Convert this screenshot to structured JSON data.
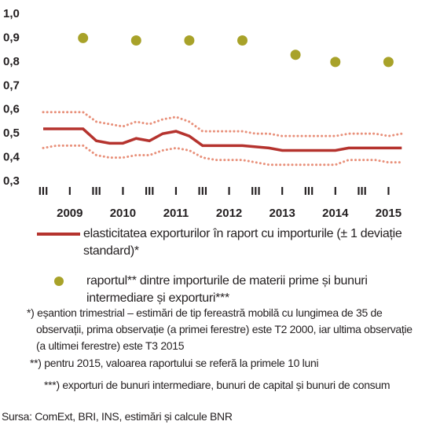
{
  "chart_data": {
    "type": "line",
    "categories": [
      "III",
      null,
      "I",
      null,
      "III",
      null,
      "I",
      null,
      "III",
      null,
      "I",
      null,
      "III",
      null,
      "I",
      null,
      "III",
      null,
      "I",
      null,
      "III",
      null,
      "I",
      null,
      "III",
      null,
      "I",
      null
    ],
    "years": [
      "2009",
      "2010",
      "2011",
      "2012",
      "2013",
      "2014",
      "2015"
    ],
    "series": [
      {
        "name": "elasticitatea exporturilor în raport cu importurile (± 1 deviație standard)*",
        "color": "#b5332e",
        "style": "solid",
        "values": [
          0.52,
          0.52,
          0.52,
          0.52,
          0.47,
          0.46,
          0.46,
          0.48,
          0.47,
          0.5,
          0.51,
          0.49,
          0.45,
          0.45,
          0.45,
          0.45,
          0.445,
          0.44,
          0.43,
          0.43,
          0.43,
          0.43,
          0.43,
          0.44,
          0.44,
          0.44,
          0.44,
          0.44
        ]
      },
      {
        "color": "#e8907a",
        "style": "dotted",
        "values": [
          0.59,
          0.59,
          0.59,
          0.59,
          0.55,
          0.54,
          0.53,
          0.55,
          0.54,
          0.56,
          0.57,
          0.55,
          0.51,
          0.51,
          0.51,
          0.51,
          0.5,
          0.5,
          0.49,
          0.49,
          0.49,
          0.49,
          0.49,
          0.5,
          0.5,
          0.5,
          0.49,
          0.5
        ]
      },
      {
        "color": "#e8907a",
        "style": "dotted",
        "values": [
          0.44,
          0.45,
          0.45,
          0.45,
          0.41,
          0.4,
          0.4,
          0.41,
          0.41,
          0.43,
          0.44,
          0.43,
          0.4,
          0.39,
          0.39,
          0.39,
          0.38,
          0.37,
          0.37,
          0.37,
          0.37,
          0.37,
          0.37,
          0.39,
          0.39,
          0.39,
          0.38,
          0.38
        ]
      },
      {
        "name": "raportul** dintre importurile de materii prime și bunuri intermediare și exporturi***",
        "color": "#a8a229",
        "style": "dots",
        "values": [
          null,
          null,
          null,
          0.9,
          null,
          null,
          null,
          0.89,
          null,
          null,
          null,
          0.89,
          null,
          null,
          null,
          0.89,
          null,
          null,
          null,
          0.83,
          null,
          null,
          0.8,
          null,
          null,
          null,
          0.8,
          null
        ]
      }
    ],
    "ylim": [
      0.3,
      1.0
    ],
    "yticks": [
      {
        "value": 0.3,
        "label": "0,3"
      },
      {
        "value": 0.4,
        "label": "0,4"
      },
      {
        "value": 0.5,
        "label": "0,5"
      },
      {
        "value": 0.6,
        "label": "0,6"
      },
      {
        "value": 0.7,
        "label": "0,7"
      },
      {
        "value": 0.8,
        "label": "0,8"
      },
      {
        "value": 0.9,
        "label": "0,9"
      },
      {
        "value": 1.0,
        "label": "1,0"
      }
    ],
    "notes": [
      "*) eșantion trimestrial  – estimări de tip fereastră mobilă cu lungimea de 35 de observații, prima observație (a primei ferestre) este T2 2000, iar ultima observație (a ultimei ferestre) este T3 2015",
      "**) pentru 2015, valoarea raportului se referă la primele 10 luni",
      "***) exporturi de bunuri intermediare, bunuri de capital și bunuri de consum"
    ],
    "source": "Sursa: ComExt, BRI, INS, estimări și calcule BNR"
  }
}
